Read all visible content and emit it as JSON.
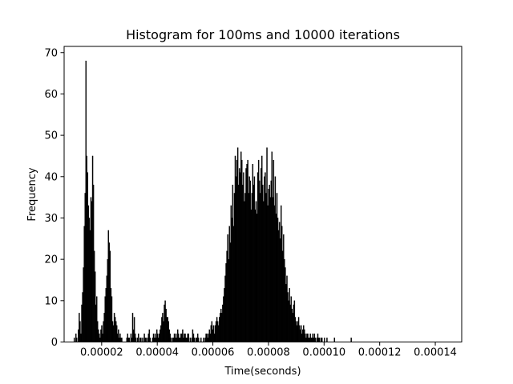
{
  "chart_data": {
    "type": "bar",
    "title": "Histogram for 100ms and 10000 iterations",
    "xlabel": "Time(seconds)",
    "ylabel": "Frequency",
    "xlim": [
      6.5e-06,
      0.0001495
    ],
    "ylim": [
      0,
      71.5
    ],
    "x_ticks": [
      {
        "value": 2e-05,
        "label": "0.00002"
      },
      {
        "value": 4e-05,
        "label": "0.00004"
      },
      {
        "value": 6e-05,
        "label": "0.00006"
      },
      {
        "value": 8e-05,
        "label": "0.00008"
      },
      {
        "value": 0.0001,
        "label": "0.00010"
      },
      {
        "value": 0.00012,
        "label": "0.00012"
      },
      {
        "value": 0.00014,
        "label": "0.00014"
      }
    ],
    "y_ticks": [
      {
        "value": 0,
        "label": "0"
      },
      {
        "value": 10,
        "label": "10"
      },
      {
        "value": 20,
        "label": "20"
      },
      {
        "value": 30,
        "label": "30"
      },
      {
        "value": 40,
        "label": "40"
      },
      {
        "value": 50,
        "label": "50"
      },
      {
        "value": 60,
        "label": "60"
      },
      {
        "value": 70,
        "label": "70"
      }
    ],
    "bar_color": "#000000",
    "bin_width": 3e-07,
    "x_start": 1e-05,
    "values": [
      1,
      0,
      2,
      1,
      0,
      3,
      7,
      5,
      2,
      9,
      12,
      18,
      28,
      36,
      68,
      45,
      41,
      33,
      30,
      27,
      35,
      34,
      45,
      38,
      22,
      17,
      9,
      11,
      5,
      3,
      2,
      1,
      3,
      4,
      2,
      5,
      7,
      11,
      13,
      16,
      20,
      27,
      24,
      22,
      13,
      11,
      5,
      4,
      7,
      6,
      5,
      4,
      2,
      3,
      1,
      2,
      1,
      1,
      0,
      0,
      0,
      0,
      0,
      1,
      2,
      1,
      1,
      0,
      2,
      1,
      7,
      3,
      6,
      2,
      1,
      0,
      1,
      2,
      0,
      1,
      1,
      0,
      1,
      0,
      2,
      1,
      1,
      0,
      1,
      2,
      3,
      1,
      0,
      0,
      1,
      2,
      1,
      2,
      1,
      3,
      2,
      1,
      2,
      3,
      4,
      6,
      7,
      5,
      9,
      10,
      8,
      6,
      6,
      5,
      3,
      2,
      1,
      0,
      1,
      1,
      2,
      1,
      2,
      1,
      3,
      2,
      1,
      1,
      2,
      2,
      3,
      1,
      2,
      2,
      1,
      1,
      2,
      2,
      0,
      1,
      0,
      1,
      3,
      2,
      1,
      0,
      1,
      1,
      2,
      1,
      0,
      0,
      1,
      0,
      0,
      1,
      0,
      1,
      2,
      2,
      1,
      2,
      3,
      2,
      4,
      5,
      3,
      4,
      2,
      4,
      5,
      6,
      5,
      4,
      6,
      7,
      8,
      7,
      9,
      11,
      13,
      16,
      19,
      22,
      26,
      20,
      28,
      24,
      33,
      30,
      38,
      28,
      36,
      45,
      40,
      44,
      47,
      38,
      42,
      41,
      46,
      44,
      38,
      41,
      34,
      36,
      42,
      43,
      44,
      36,
      40,
      39,
      32,
      36,
      43,
      38,
      40,
      32,
      34,
      31,
      41,
      44,
      39,
      36,
      42,
      45,
      38,
      34,
      40,
      41,
      36,
      47,
      33,
      37,
      38,
      35,
      39,
      46,
      35,
      44,
      33,
      40,
      31,
      36,
      30,
      27,
      29,
      25,
      33,
      28,
      22,
      26,
      20,
      18,
      14,
      16,
      12,
      10,
      13,
      9,
      11,
      8,
      7,
      9,
      10,
      6,
      5,
      4,
      5,
      6,
      4,
      3,
      4,
      2,
      3,
      4,
      3,
      2,
      1,
      2,
      2,
      1,
      1,
      2,
      1,
      1,
      2,
      1,
      2,
      1,
      0,
      1,
      2,
      1,
      1,
      0,
      1,
      1,
      0,
      0,
      1,
      0,
      0,
      1,
      0,
      0,
      0,
      0,
      0,
      0,
      0,
      0,
      1,
      0,
      0,
      0,
      0,
      0,
      0,
      0,
      0,
      0,
      0,
      0,
      0,
      0,
      0,
      0,
      0,
      0,
      0,
      0,
      1
    ]
  }
}
